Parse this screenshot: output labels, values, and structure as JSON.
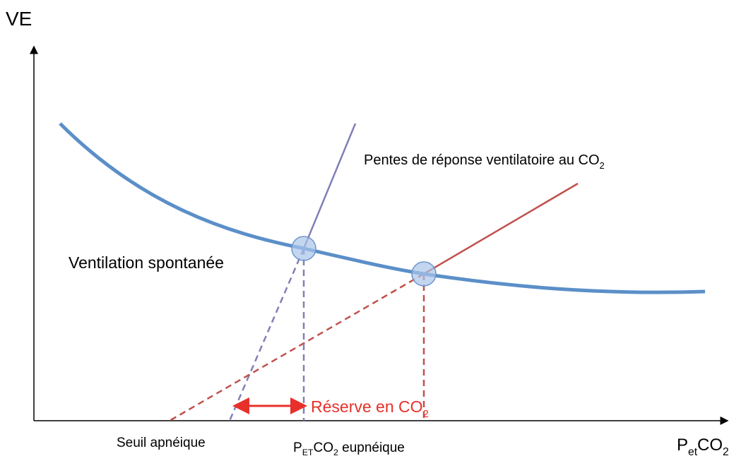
{
  "axes": {
    "y_label": "VE",
    "x_label": [
      "P",
      "et",
      "CO",
      "2"
    ]
  },
  "annotations": {
    "slopes": [
      "Pentes de réponse ventilatoire au CO",
      "2"
    ],
    "spontaneous": "Ventilation spontanée",
    "reserve": [
      "Réserve en CO",
      "2"
    ],
    "apnea_threshold": "Seuil apnéique",
    "eupneic": [
      "P",
      "ET",
      "CO",
      "2",
      " eupnéique"
    ]
  }
}
